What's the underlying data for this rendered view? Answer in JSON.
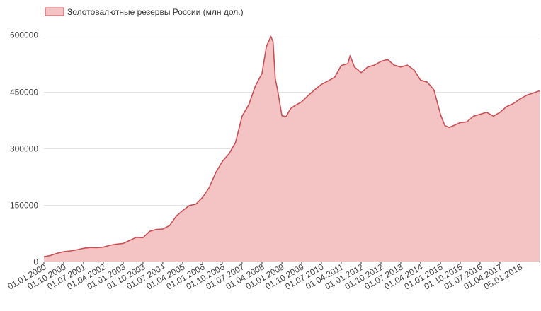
{
  "chart_data": {
    "type": "area",
    "title": "",
    "xlabel": "",
    "ylabel": "",
    "legend": {
      "placement": "top-left",
      "entries": [
        "Золотовалютные резервы России (млн дол.)"
      ]
    },
    "grid": true,
    "ylim": [
      0,
      640000
    ],
    "y_ticks": [
      0,
      150000,
      300000,
      450000,
      600000
    ],
    "y_tick_labels": [
      "0",
      "150000",
      "300000",
      "450000",
      "600000"
    ],
    "xlim": [
      "2000-01-01",
      "2018-10-01"
    ],
    "x_ticks": [
      "2000-01-01",
      "2000-10-01",
      "2001-07-01",
      "2002-04-01",
      "2003-01-01",
      "2003-10-01",
      "2004-07-01",
      "2005-04-01",
      "2006-01-01",
      "2006-10-01",
      "2007-07-01",
      "2008-04-01",
      "2009-01-01",
      "2009-10-01",
      "2010-07-01",
      "2011-04-01",
      "2012-01-01",
      "2012-10-01",
      "2013-07-01",
      "2014-04-01",
      "2015-01-01",
      "2015-10-01",
      "2016-07-01",
      "2017-04-01",
      "2018-01-05"
    ],
    "x_tick_labels": [
      "01.01.2000",
      "01.10.2000",
      "01.07.2001",
      "01.04.2002",
      "01.01.2003",
      "01.10.2003",
      "01.07.2004",
      "01.04.2005",
      "01.01.2006",
      "01.10.2006",
      "01.07.2007",
      "01.04.2008",
      "01.01.2009",
      "01.10.2009",
      "01.07.2010",
      "01.04.2011",
      "01.01.2012",
      "01.10.2012",
      "01.07.2013",
      "01.04.2014",
      "01.01.2015",
      "01.10.2015",
      "01.07.2016",
      "01.04.2017",
      "05.01.2018"
    ],
    "series": [
      {
        "name": "Золотовалютные резервы России (млн дол.)",
        "color": "#f4c4c4",
        "line_color": "#c94f55",
        "x": [
          "2000-01-01",
          "2000-04-01",
          "2000-07-01",
          "2000-10-01",
          "2001-01-01",
          "2001-04-01",
          "2001-07-01",
          "2001-10-01",
          "2002-01-01",
          "2002-04-01",
          "2002-07-01",
          "2002-10-01",
          "2003-01-01",
          "2003-04-01",
          "2003-07-01",
          "2003-10-01",
          "2004-01-01",
          "2004-04-01",
          "2004-07-01",
          "2004-10-01",
          "2005-01-01",
          "2005-04-01",
          "2005-07-01",
          "2005-10-01",
          "2006-01-01",
          "2006-04-01",
          "2006-07-01",
          "2006-10-01",
          "2007-01-01",
          "2007-04-01",
          "2007-07-01",
          "2007-10-01",
          "2008-01-01",
          "2008-04-01",
          "2008-06-01",
          "2008-08-01",
          "2008-09-01",
          "2008-10-01",
          "2008-11-01",
          "2009-01-01",
          "2009-03-01",
          "2009-05-01",
          "2009-07-01",
          "2009-10-01",
          "2010-01-01",
          "2010-04-01",
          "2010-07-01",
          "2010-10-01",
          "2011-01-01",
          "2011-04-01",
          "2011-07-01",
          "2011-08-01",
          "2011-10-01",
          "2012-01-01",
          "2012-04-01",
          "2012-07-01",
          "2012-10-01",
          "2013-01-01",
          "2013-04-01",
          "2013-07-01",
          "2013-10-01",
          "2014-01-01",
          "2014-04-01",
          "2014-07-01",
          "2014-10-01",
          "2015-01-01",
          "2015-03-01",
          "2015-05-01",
          "2015-07-01",
          "2015-10-01",
          "2016-01-01",
          "2016-04-01",
          "2016-07-01",
          "2016-10-01",
          "2017-01-01",
          "2017-04-01",
          "2017-07-01",
          "2017-10-01",
          "2018-01-01",
          "2018-04-01",
          "2018-07-01",
          "2018-10-01"
        ],
        "values": [
          12500,
          16000,
          22000,
          26000,
          28000,
          31000,
          35000,
          37000,
          36500,
          38000,
          43000,
          46000,
          48000,
          56000,
          64000,
          63000,
          80000,
          85000,
          86000,
          95000,
          120000,
          135000,
          148000,
          152000,
          170000,
          195000,
          235000,
          265000,
          285000,
          315000,
          385000,
          415000,
          465000,
          498000,
          569000,
          596000,
          582000,
          484000,
          455000,
          386000,
          384000,
          405000,
          413000,
          423000,
          440000,
          455000,
          469000,
          478000,
          488000,
          519000,
          524000,
          545000,
          515000,
          500000,
          515000,
          520000,
          530000,
          535000,
          520000,
          515000,
          520000,
          507000,
          480000,
          475000,
          455000,
          389000,
          360000,
          355000,
          360000,
          368000,
          370000,
          385000,
          390000,
          395000,
          385000,
          395000,
          410000,
          418000,
          430000,
          440000,
          446000,
          452000
        ]
      }
    ]
  }
}
